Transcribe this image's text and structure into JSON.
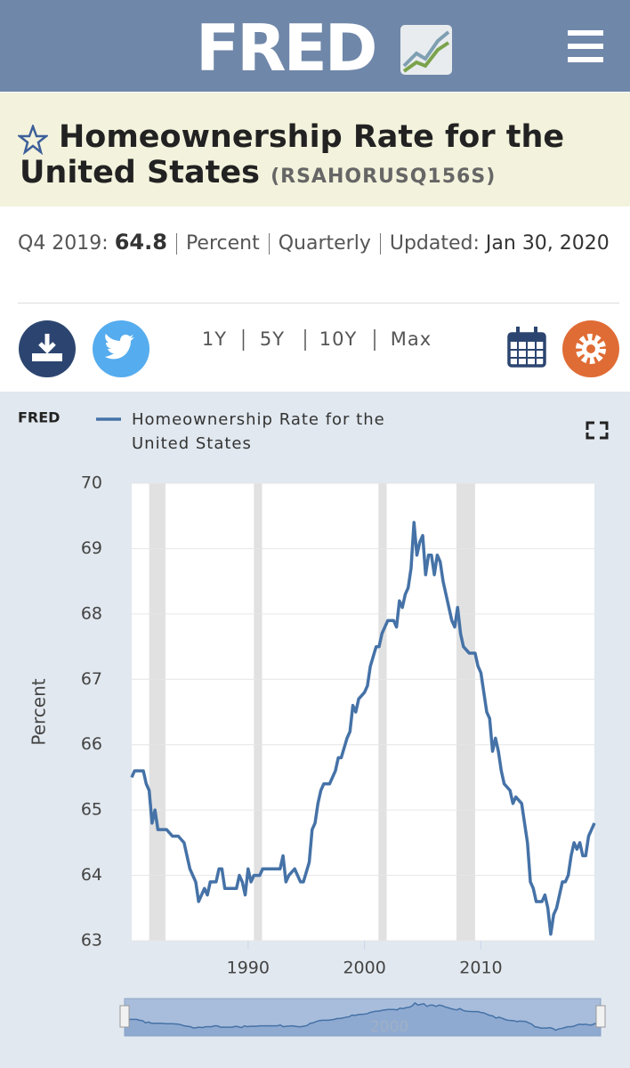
{
  "header": {
    "logo": "FRED"
  },
  "title": {
    "text": "Homeownership Rate for the United States",
    "series_id": "(RSAHORUSQ156S)"
  },
  "info": {
    "period": "Q4 2019:",
    "value": "64.8",
    "units": "Percent",
    "frequency": "Quarterly",
    "updated_label": "Updated:",
    "updated_date": "Jan 30, 2020"
  },
  "ranges": [
    "1Y",
    "5Y",
    "10Y",
    "Max"
  ],
  "chart_data": {
    "type": "line",
    "logo": "FRED",
    "ylabel": "Percent",
    "xlim": [
      1980,
      2019.75
    ],
    "xticks": [
      1990,
      2000,
      2010
    ],
    "ylim": [
      63,
      70
    ],
    "yticks": [
      63,
      64,
      65,
      66,
      67,
      68,
      69,
      70
    ],
    "grid": true,
    "recessions": [
      [
        1981.5,
        1982.9
      ],
      [
        1990.5,
        1991.2
      ],
      [
        2001.2,
        2001.9
      ],
      [
        2007.9,
        2009.5
      ]
    ],
    "x": [
      1980,
      1980.25,
      1980.75,
      1981,
      1981.25,
      1981.5,
      1981.75,
      1982,
      1982.25,
      1983,
      1983.5,
      1984,
      1984.5,
      1985,
      1985.5,
      1985.75,
      1986,
      1986.25,
      1986.5,
      1986.75,
      1987.25,
      1987.5,
      1987.75,
      1988,
      1988.5,
      1989,
      1989.25,
      1989.5,
      1989.75,
      1990,
      1990.25,
      1990.5,
      1991,
      1991.25,
      1992,
      1992.75,
      1993,
      1993.25,
      1993.5,
      1994,
      1994.25,
      1994.5,
      1994.75,
      1995.25,
      1995.5,
      1995.75,
      1996,
      1996.25,
      1996.5,
      1997,
      1997.5,
      1997.75,
      1998,
      1998.5,
      1998.75,
      1999,
      1999.25,
      1999.5,
      2000,
      2000.25,
      2000.5,
      2001,
      2001.25,
      2001.5,
      2002,
      2002.5,
      2002.75,
      2003,
      2003.25,
      2003.5,
      2003.75,
      2004,
      2004.25,
      2004.5,
      2004.75,
      2005,
      2005.25,
      2005.5,
      2005.75,
      2006,
      2006.25,
      2006.5,
      2006.75,
      2007,
      2007.5,
      2007.75,
      2008,
      2008.25,
      2008.5,
      2009,
      2009.5,
      2009.75,
      2010,
      2010.25,
      2010.5,
      2010.75,
      2011,
      2011.25,
      2011.5,
      2011.75,
      2012,
      2012.5,
      2012.75,
      2013,
      2013.5,
      2013.75,
      2014,
      2014.25,
      2014.5,
      2014.75,
      2015.25,
      2015.5,
      2015.75,
      2016,
      2016.25,
      2016.5,
      2017,
      2017.25,
      2017.5,
      2017.75,
      2018,
      2018.25,
      2018.5,
      2018.75,
      2019,
      2019.25,
      2019.5,
      2019.75
    ],
    "series": [
      {
        "name": "Homeownership Rate for the United States",
        "color": "#4572a7",
        "values": [
          65.5,
          65.6,
          65.6,
          65.6,
          65.4,
          65.3,
          64.8,
          65.0,
          64.7,
          64.7,
          64.6,
          64.6,
          64.5,
          64.1,
          63.9,
          63.6,
          63.7,
          63.8,
          63.7,
          63.9,
          63.9,
          64.1,
          64.1,
          63.8,
          63.8,
          63.8,
          64.0,
          63.9,
          63.7,
          64.1,
          63.9,
          64.0,
          64.0,
          64.1,
          64.1,
          64.1,
          64.3,
          63.9,
          64.0,
          64.1,
          64.0,
          63.9,
          63.9,
          64.2,
          64.7,
          64.8,
          65.1,
          65.3,
          65.4,
          65.4,
          65.6,
          65.8,
          65.8,
          66.1,
          66.2,
          66.6,
          66.5,
          66.7,
          66.8,
          66.9,
          67.2,
          67.5,
          67.5,
          67.7,
          67.9,
          67.9,
          67.8,
          68.2,
          68.1,
          68.3,
          68.4,
          68.7,
          69.4,
          68.9,
          69.1,
          69.2,
          68.6,
          68.9,
          68.9,
          68.6,
          68.9,
          68.8,
          68.5,
          68.3,
          67.9,
          67.8,
          68.1,
          67.7,
          67.5,
          67.4,
          67.4,
          67.2,
          67.1,
          66.8,
          66.5,
          66.4,
          65.9,
          66.1,
          65.9,
          65.6,
          65.4,
          65.3,
          65.1,
          65.2,
          65.1,
          64.8,
          64.5,
          63.9,
          63.8,
          63.6,
          63.6,
          63.7,
          63.5,
          63.1,
          63.4,
          63.5,
          63.9,
          63.9,
          64.0,
          64.3,
          64.5,
          64.4,
          64.5,
          64.3,
          64.3,
          64.6,
          64.7,
          64.8
        ]
      }
    ],
    "navigator_label": "2000"
  }
}
